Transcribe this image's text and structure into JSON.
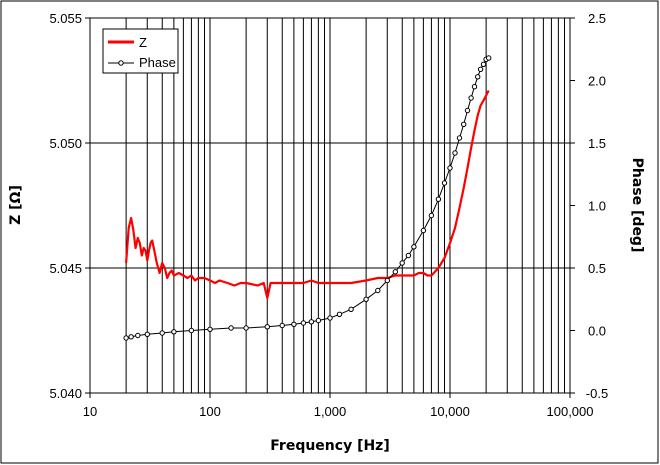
{
  "chart_data": {
    "type": "line",
    "xlabel": "Frequency [Hz]",
    "ylabel": "Z [Ω]",
    "y2label": "Phase [deg]",
    "x_scale": "log",
    "xlim": [
      10,
      100000
    ],
    "ylim": [
      5.04,
      5.055
    ],
    "y2lim": [
      -0.5,
      2.5
    ],
    "x_ticks": [
      10,
      100,
      1000,
      10000,
      100000
    ],
    "x_tick_labels": [
      "10",
      "100",
      "1,000",
      "10,000",
      "100,000"
    ],
    "y_ticks": [
      5.04,
      5.045,
      5.05,
      5.055
    ],
    "y_tick_labels": [
      "5.040",
      "5.045",
      "5.050",
      "5.055"
    ],
    "y2_ticks": [
      -0.5,
      0.0,
      0.5,
      1.0,
      1.5,
      2.0,
      2.5
    ],
    "y2_tick_labels": [
      "-0.5",
      "0.0",
      "0.5",
      "1.0",
      "1.5",
      "2.0",
      "2.5"
    ],
    "grid": true,
    "legend_position": "top-left",
    "series": [
      {
        "name": "Z",
        "axis": "left",
        "color": "#ff0000",
        "style": "line",
        "x": [
          20,
          21,
          22,
          23,
          24,
          25,
          26,
          27,
          28,
          29,
          30,
          31,
          32,
          33,
          34,
          35,
          36,
          38,
          40,
          42,
          44,
          46,
          48,
          50,
          55,
          60,
          65,
          70,
          75,
          80,
          90,
          100,
          110,
          120,
          140,
          160,
          180,
          200,
          250,
          280,
          300,
          320,
          350,
          400,
          500,
          600,
          700,
          800,
          1000,
          1200,
          1500,
          2000,
          2500,
          3000,
          3500,
          4000,
          4500,
          5000,
          5500,
          6000,
          6500,
          7000,
          8000,
          9000,
          10000,
          11000,
          12000,
          13000,
          14000,
          15000,
          16000,
          17000,
          18000,
          19000,
          20000,
          21000
        ],
        "values": [
          5.0452,
          5.0466,
          5.047,
          5.0465,
          5.0458,
          5.0462,
          5.046,
          5.0455,
          5.0458,
          5.0457,
          5.0453,
          5.0457,
          5.046,
          5.0461,
          5.0458,
          5.0455,
          5.0452,
          5.0448,
          5.0452,
          5.045,
          5.0446,
          5.0448,
          5.0449,
          5.0447,
          5.0448,
          5.0447,
          5.0446,
          5.0447,
          5.0445,
          5.0446,
          5.0446,
          5.0445,
          5.0444,
          5.0445,
          5.0444,
          5.0443,
          5.0444,
          5.0444,
          5.0443,
          5.0444,
          5.0438,
          5.0444,
          5.0444,
          5.0444,
          5.0444,
          5.0444,
          5.0445,
          5.0444,
          5.0444,
          5.0444,
          5.0444,
          5.0445,
          5.0446,
          5.0446,
          5.0447,
          5.0447,
          5.0447,
          5.0447,
          5.0448,
          5.0448,
          5.0447,
          5.0447,
          5.045,
          5.0454,
          5.046,
          5.0466,
          5.0474,
          5.0482,
          5.049,
          5.0498,
          5.0505,
          5.0511,
          5.0515,
          5.0517,
          5.0519,
          5.0521
        ]
      },
      {
        "name": "Phase",
        "axis": "right",
        "color": "#000000",
        "style": "line-markers",
        "x": [
          20,
          22,
          25,
          30,
          40,
          50,
          70,
          100,
          150,
          200,
          300,
          400,
          500,
          600,
          700,
          800,
          1000,
          1200,
          1500,
          2000,
          2500,
          3000,
          3500,
          4000,
          4500,
          5000,
          6000,
          7000,
          8000,
          9000,
          10000,
          11000,
          12000,
          13000,
          14000,
          15000,
          16000,
          17000,
          18000,
          19000,
          20000,
          21000
        ],
        "values": [
          -0.06,
          -0.05,
          -0.04,
          -0.03,
          -0.02,
          -0.01,
          0.0,
          0.01,
          0.02,
          0.02,
          0.03,
          0.04,
          0.05,
          0.06,
          0.07,
          0.08,
          0.1,
          0.13,
          0.17,
          0.25,
          0.32,
          0.4,
          0.47,
          0.54,
          0.6,
          0.67,
          0.8,
          0.92,
          1.05,
          1.18,
          1.3,
          1.42,
          1.54,
          1.65,
          1.76,
          1.86,
          1.95,
          2.03,
          2.09,
          2.13,
          2.17,
          2.18
        ]
      }
    ]
  }
}
